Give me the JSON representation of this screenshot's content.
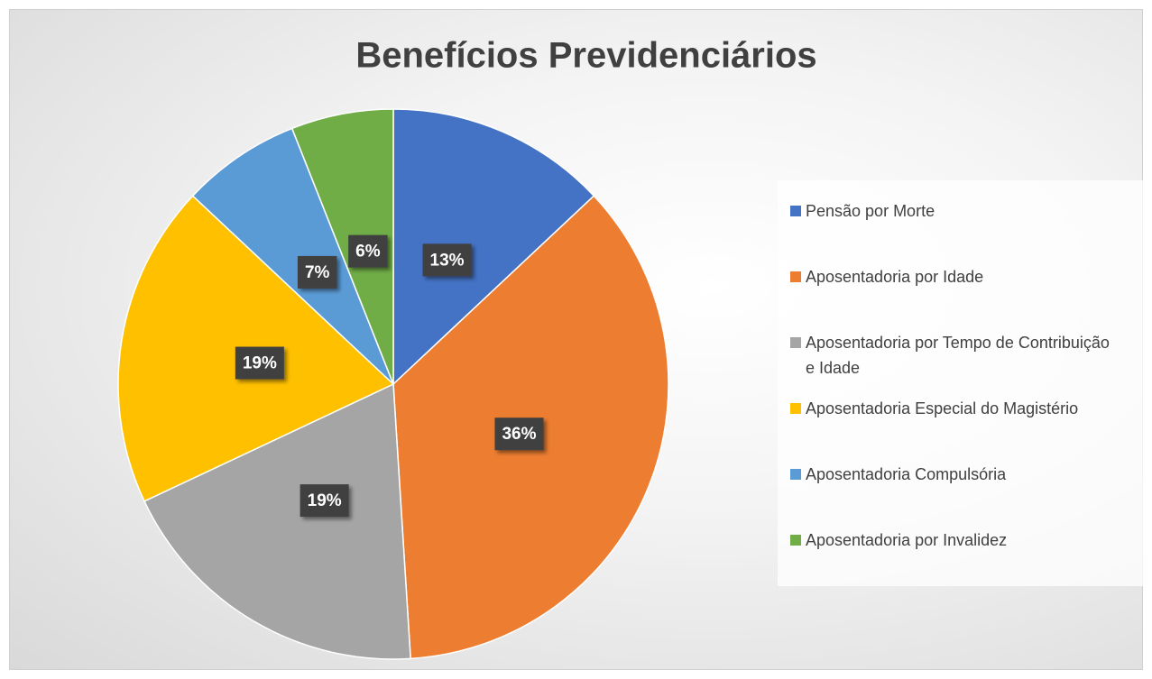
{
  "chart_data": {
    "type": "pie",
    "title": "Benefícios Previdenciários",
    "categories": [
      "Pensão por Morte",
      "Aposentadoria por Idade",
      "Aposentadoria por Tempo de Contribuição e Idade",
      "Aposentadoria Especial do Magistério",
      "Aposentadoria Compulsória",
      "Aposentadoria por Invalidez"
    ],
    "values": [
      13,
      36,
      19,
      19,
      7,
      6
    ],
    "value_labels": [
      "13%",
      "36%",
      "19%",
      "19%",
      "7%",
      "6%"
    ],
    "colors": [
      "#4472c4",
      "#ed7d31",
      "#a5a5a5",
      "#ffc000",
      "#5b9bd5",
      "#70ad47"
    ],
    "legend": "right"
  }
}
